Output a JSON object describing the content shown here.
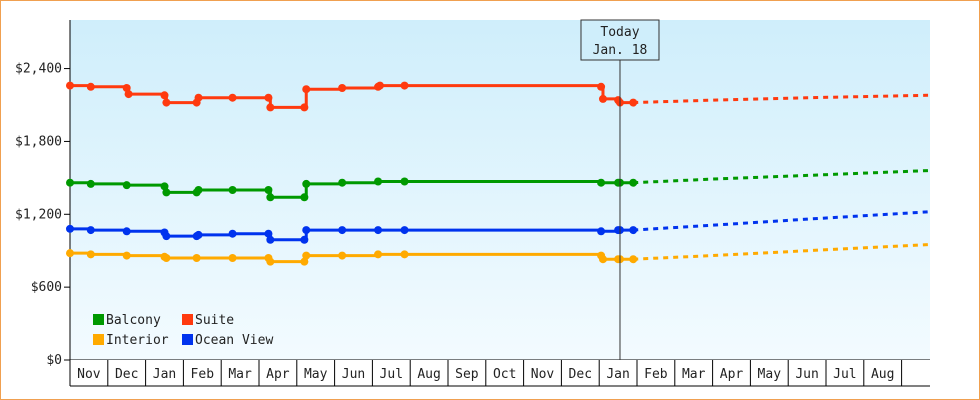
{
  "chart_data": {
    "type": "line",
    "title": "",
    "xlabel": "",
    "ylabel": "",
    "ylim": [
      0,
      2800
    ],
    "y_ticks": [
      {
        "value": 0,
        "label": "$0"
      },
      {
        "value": 600,
        "label": "$600"
      },
      {
        "value": 1200,
        "label": "$1,200"
      },
      {
        "value": 1800,
        "label": "$1,800"
      },
      {
        "value": 2400,
        "label": "$2,400"
      }
    ],
    "x_months": [
      "Nov",
      "Dec",
      "Jan",
      "Feb",
      "Mar",
      "Apr",
      "May",
      "Jun",
      "Jul",
      "Aug",
      "Sep",
      "Oct",
      "Nov",
      "Dec",
      "Jan",
      "Feb",
      "Mar",
      "Apr",
      "May",
      "Jun",
      "Jul",
      "Aug"
    ],
    "x_range": [
      0,
      22.7
    ],
    "today": {
      "x": 14.55,
      "line1": "Today",
      "line2": "Jan. 18"
    },
    "legend": {
      "placement": "bottom-left"
    },
    "background": {
      "top": "#cfeefb",
      "bottom": "#f3fbff"
    },
    "series": [
      {
        "name": "Suite",
        "color": "#ff3a0f",
        "points": [
          [
            0,
            2260
          ],
          [
            0.55,
            2250
          ],
          [
            1.5,
            2240
          ],
          [
            1.55,
            2190
          ],
          [
            2.5,
            2180
          ],
          [
            2.55,
            2120
          ],
          [
            3.35,
            2120
          ],
          [
            3.4,
            2160
          ],
          [
            4.3,
            2160
          ],
          [
            5.25,
            2160
          ],
          [
            5.3,
            2080
          ],
          [
            6.2,
            2080
          ],
          [
            6.25,
            2230
          ],
          [
            7.2,
            2240
          ],
          [
            8.15,
            2250
          ],
          [
            8.2,
            2260
          ],
          [
            8.85,
            2260
          ],
          [
            14.05,
            2250
          ],
          [
            14.1,
            2150
          ],
          [
            14.5,
            2140
          ],
          [
            14.55,
            2120
          ],
          [
            14.9,
            2120
          ]
        ],
        "projection": [
          [
            14.9,
            2120
          ],
          [
            17,
            2140
          ],
          [
            19.5,
            2160
          ],
          [
            22.7,
            2180
          ]
        ]
      },
      {
        "name": "Balcony",
        "color": "#009900",
        "points": [
          [
            0,
            1460
          ],
          [
            0.55,
            1450
          ],
          [
            1.5,
            1440
          ],
          [
            2.5,
            1430
          ],
          [
            2.55,
            1380
          ],
          [
            3.35,
            1380
          ],
          [
            3.4,
            1400
          ],
          [
            4.3,
            1400
          ],
          [
            5.25,
            1400
          ],
          [
            5.3,
            1340
          ],
          [
            6.2,
            1340
          ],
          [
            6.25,
            1450
          ],
          [
            7.2,
            1460
          ],
          [
            8.15,
            1470
          ],
          [
            8.85,
            1470
          ],
          [
            14.05,
            1460
          ],
          [
            14.5,
            1460
          ],
          [
            14.55,
            1460
          ],
          [
            14.9,
            1460
          ]
        ],
        "projection": [
          [
            14.9,
            1460
          ],
          [
            17,
            1490
          ],
          [
            19.5,
            1520
          ],
          [
            22.7,
            1560
          ]
        ]
      },
      {
        "name": "Ocean View",
        "color": "#0033ee",
        "points": [
          [
            0,
            1080
          ],
          [
            0.55,
            1070
          ],
          [
            1.5,
            1060
          ],
          [
            2.5,
            1050
          ],
          [
            2.55,
            1020
          ],
          [
            3.35,
            1020
          ],
          [
            3.4,
            1030
          ],
          [
            4.3,
            1040
          ],
          [
            5.25,
            1040
          ],
          [
            5.3,
            990
          ],
          [
            6.2,
            990
          ],
          [
            6.25,
            1070
          ],
          [
            7.2,
            1070
          ],
          [
            8.15,
            1070
          ],
          [
            8.85,
            1070
          ],
          [
            14.05,
            1060
          ],
          [
            14.5,
            1070
          ],
          [
            14.55,
            1070
          ],
          [
            14.9,
            1070
          ]
        ],
        "projection": [
          [
            14.9,
            1070
          ],
          [
            17,
            1110
          ],
          [
            19.5,
            1160
          ],
          [
            22.7,
            1220
          ]
        ]
      },
      {
        "name": "Interior",
        "color": "#ffaa00",
        "points": [
          [
            0,
            880
          ],
          [
            0.55,
            870
          ],
          [
            1.5,
            860
          ],
          [
            2.5,
            850
          ],
          [
            2.55,
            840
          ],
          [
            3.35,
            840
          ],
          [
            4.3,
            840
          ],
          [
            5.25,
            840
          ],
          [
            5.3,
            810
          ],
          [
            6.2,
            810
          ],
          [
            6.25,
            860
          ],
          [
            7.2,
            860
          ],
          [
            8.15,
            870
          ],
          [
            8.85,
            870
          ],
          [
            14.05,
            860
          ],
          [
            14.1,
            830
          ],
          [
            14.5,
            830
          ],
          [
            14.55,
            830
          ],
          [
            14.9,
            830
          ]
        ],
        "projection": [
          [
            14.9,
            830
          ],
          [
            17,
            860
          ],
          [
            19.5,
            900
          ],
          [
            22.7,
            950
          ]
        ]
      }
    ],
    "legend_items": [
      {
        "label": "Balcony",
        "color": "#009900"
      },
      {
        "label": "Suite",
        "color": "#ff3a0f"
      },
      {
        "label": "Interior",
        "color": "#ffaa00"
      },
      {
        "label": "Ocean View",
        "color": "#0033ee"
      }
    ]
  }
}
